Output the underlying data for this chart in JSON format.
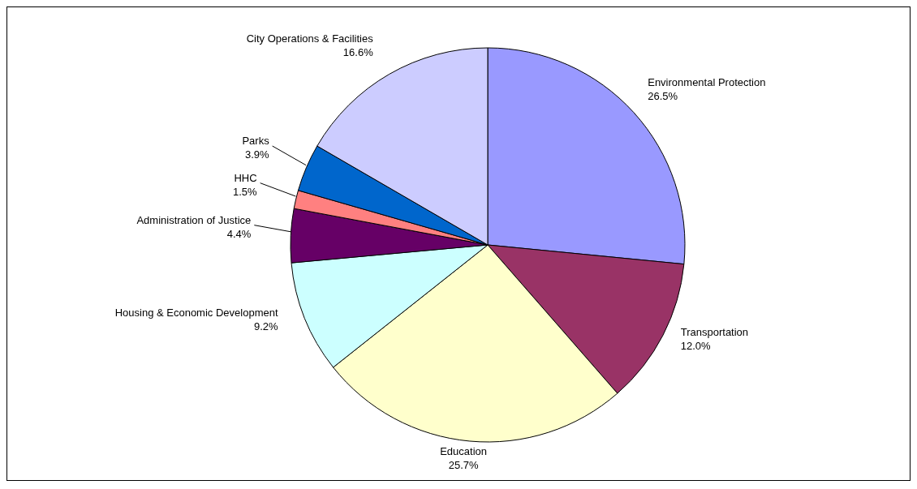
{
  "chart_data": {
    "type": "pie",
    "categories": [
      "Environmental Protection",
      "Transportation",
      "Education",
      "Housing & Economic Development",
      "Administration of Justice",
      "HHC",
      "Parks",
      "City Operations & Facilities"
    ],
    "values": [
      26.5,
      12.0,
      25.7,
      9.2,
      4.4,
      1.5,
      3.9,
      16.6
    ],
    "value_labels": [
      "26.5%",
      "12.0%",
      "25.7%",
      "9.2%",
      "4.4%",
      "1.5%",
      "3.9%",
      "16.6%"
    ],
    "colors": [
      "#9999ff",
      "#993366",
      "#ffffcc",
      "#ccffff",
      "#660066",
      "#ff8080",
      "#0066cc",
      "#ccccff"
    ],
    "legend": false
  }
}
